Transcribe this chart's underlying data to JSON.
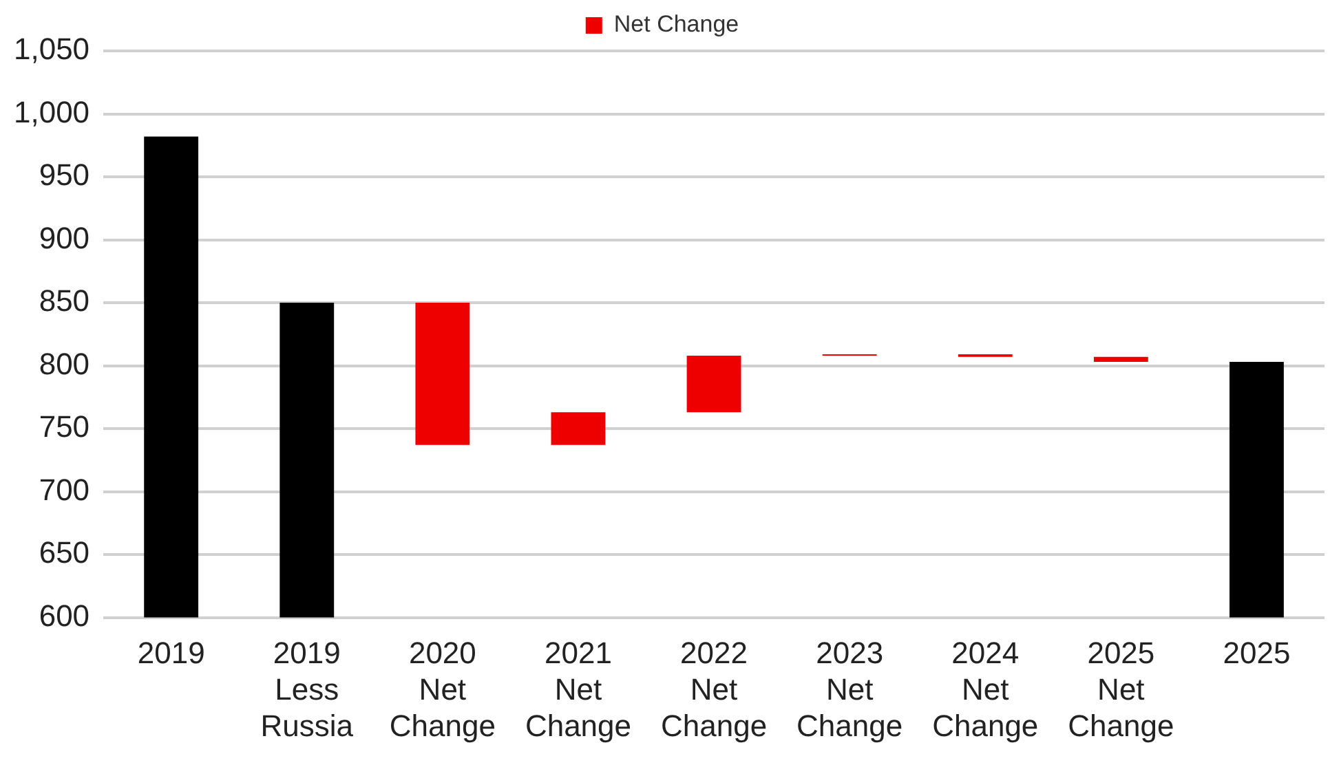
{
  "chart_data": {
    "type": "bar",
    "categories": [
      "2019",
      "2019 Less Russia",
      "2020 Net Change",
      "2021 Net Change",
      "2022 Net Change",
      "2023 Net Change",
      "2024 Net Change",
      "2025 Net Change",
      "2025"
    ],
    "series": [
      {
        "color": "#000000",
        "values": [
          982,
          850,
          null,
          null,
          null,
          null,
          null,
          null,
          803
        ]
      },
      {
        "name": "Net Change",
        "color": "#ee0000",
        "values": [
          null,
          null,
          -113,
          26,
          45,
          1,
          -2,
          -4,
          null
        ],
        "base": [
          null,
          null,
          850,
          737,
          763,
          808,
          809,
          807,
          null
        ]
      }
    ],
    "ylim": [
      600,
      1050
    ],
    "yticks": [
      {
        "value": 600,
        "label": "600"
      },
      {
        "value": 650,
        "label": "650"
      },
      {
        "value": 700,
        "label": "700"
      },
      {
        "value": 750,
        "label": "750"
      },
      {
        "value": 800,
        "label": "800"
      },
      {
        "value": 850,
        "label": "850"
      },
      {
        "value": 900,
        "label": "900"
      },
      {
        "value": 950,
        "label": "950"
      },
      {
        "value": 1000,
        "label": "1,000"
      },
      {
        "value": 1050,
        "label": "1,050"
      }
    ],
    "grid": "y",
    "legend": "top"
  }
}
